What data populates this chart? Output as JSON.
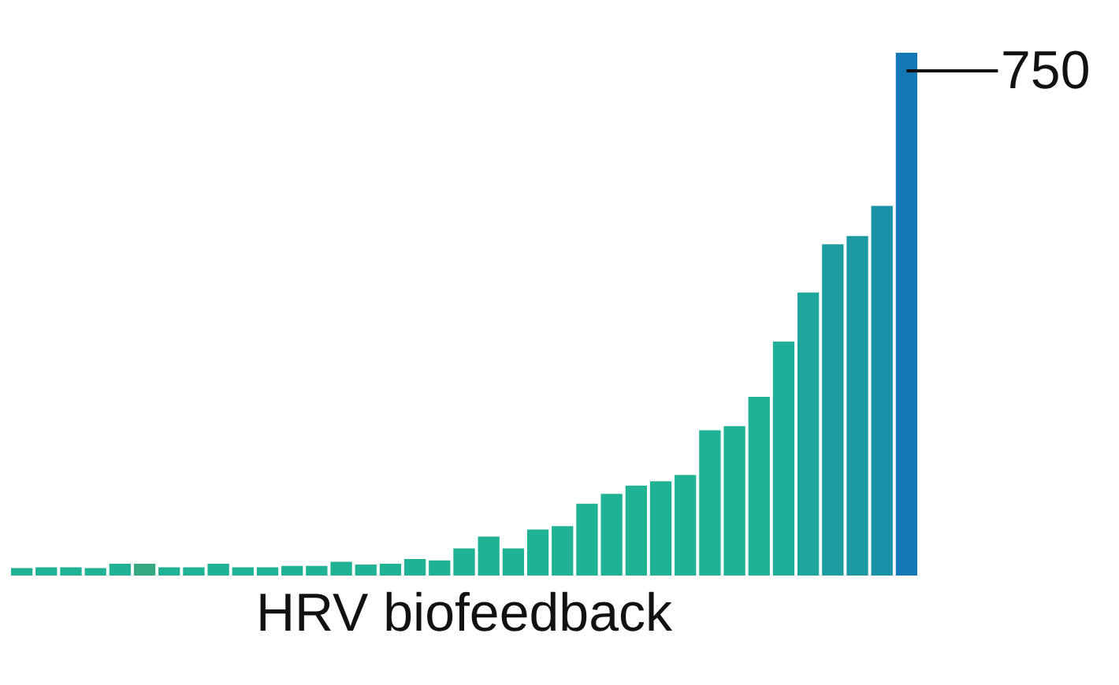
{
  "chart_data": {
    "type": "bar",
    "xlabel": "HRV biofeedback",
    "categories": [
      null,
      null,
      null,
      null,
      null,
      null,
      null,
      null,
      null,
      null,
      null,
      null,
      null,
      null,
      null,
      null,
      null,
      null,
      null,
      null,
      null,
      null,
      null,
      null,
      null,
      null,
      null,
      null,
      null,
      null,
      null,
      null,
      null,
      null,
      null,
      null,
      null
    ],
    "values": [
      13,
      14,
      14,
      13,
      19,
      19,
      14,
      14,
      19,
      14,
      14,
      16,
      16,
      22,
      18,
      19,
      26,
      24,
      41,
      58,
      41,
      68,
      73,
      105,
      119,
      131,
      137,
      146,
      210,
      216,
      258,
      337,
      407,
      476,
      488,
      531,
      750
    ],
    "colors": [
      "#20b294",
      "#20b294",
      "#20b294",
      "#20b294",
      "#20b294",
      "#36a884",
      "#20b294",
      "#20b294",
      "#20b294",
      "#20b294",
      "#20b294",
      "#20b294",
      "#20b294",
      "#20b294",
      "#20b294",
      "#20b294",
      "#20b294",
      "#20b294",
      "#20b294",
      "#20b294",
      "#20b294",
      "#20b294",
      "#20b294",
      "#20b294",
      "#20b294",
      "#20b294",
      "#20b294",
      "#20b294",
      "#20b294",
      "#20b294",
      "#20b294",
      "#1fae97",
      "#1ca69c",
      "#1c9ea0",
      "#1b9aa2",
      "#1992a8",
      "#1478b6"
    ],
    "value_labels": [
      null,
      null,
      null,
      null,
      null,
      null,
      null,
      null,
      null,
      null,
      null,
      null,
      null,
      null,
      null,
      null,
      null,
      null,
      null,
      null,
      null,
      null,
      null,
      null,
      null,
      null,
      null,
      null,
      null,
      null,
      null,
      null,
      null,
      null,
      null,
      null,
      "750"
    ],
    "ylim": [
      0,
      750
    ],
    "tick_labels": false
  }
}
